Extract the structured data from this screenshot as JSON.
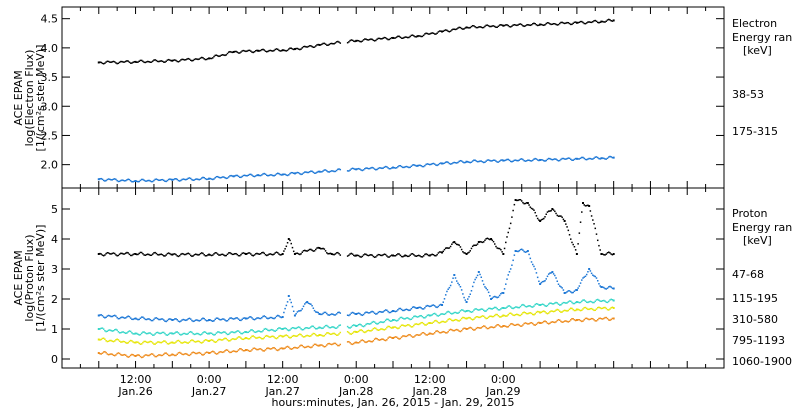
{
  "chart_data": [
    {
      "type": "scatter",
      "panel": "electron",
      "ylabel_lines": [
        "ACE EPAM",
        "log(Electron Flux)",
        "[1/(cm²s ster MeV)]"
      ],
      "ylim": [
        1.6,
        4.7
      ],
      "yticks": [
        2.0,
        2.5,
        3.0,
        3.5,
        4.0,
        4.5
      ],
      "ytick_labels": [
        "2.0",
        "2.5",
        "3.0",
        "3.5",
        "4.0",
        "4.5"
      ],
      "legend_title": [
        "Electron",
        "Energy ran",
        "[keV]"
      ],
      "series": [
        {
          "name": "38-53",
          "color": "#000000",
          "x": [
            0,
            6,
            12,
            18,
            22,
            26,
            30,
            32,
            36,
            42,
            48,
            52,
            56,
            60,
            66,
            72,
            78,
            82,
            84
          ],
          "y": [
            3.75,
            3.76,
            3.78,
            3.82,
            3.93,
            3.95,
            3.96,
            3.98,
            4.05,
            4.12,
            4.17,
            4.2,
            4.28,
            4.35,
            4.38,
            4.4,
            4.43,
            4.45,
            4.47
          ]
        },
        {
          "name": "175-315",
          "color": "#1e78d6",
          "x": [
            0,
            6,
            12,
            18,
            22,
            26,
            30,
            32,
            36,
            42,
            48,
            52,
            56,
            60,
            66,
            72,
            78,
            82,
            84
          ],
          "y": [
            1.75,
            1.72,
            1.74,
            1.76,
            1.8,
            1.82,
            1.83,
            1.85,
            1.88,
            1.92,
            1.95,
            1.98,
            2.02,
            2.05,
            2.07,
            2.08,
            2.1,
            2.11,
            2.12
          ]
        }
      ]
    },
    {
      "type": "scatter",
      "panel": "proton",
      "ylabel_lines": [
        "ACE EPAM",
        "log(Proton Flux)",
        "[1/(cm²s ster MeV)]"
      ],
      "ylim": [
        -0.3,
        5.7
      ],
      "yticks": [
        0,
        1,
        2,
        3,
        4,
        5
      ],
      "ytick_labels": [
        "0",
        "1",
        "2",
        "3",
        "4",
        "5"
      ],
      "legend_title": [
        "Proton",
        "Energy ran",
        "[keV]"
      ],
      "series": [
        {
          "name": "47-68",
          "color": "#000000",
          "x": [
            0,
            6,
            12,
            18,
            24,
            30,
            31,
            32,
            36,
            38,
            42,
            48,
            50,
            54,
            56,
            58,
            60,
            62,
            64,
            66,
            68,
            70,
            72,
            74,
            76,
            78,
            79,
            80,
            82,
            84
          ],
          "y": [
            3.5,
            3.5,
            3.48,
            3.48,
            3.5,
            3.5,
            4.0,
            3.5,
            3.7,
            3.5,
            3.45,
            3.45,
            3.45,
            3.45,
            3.55,
            3.9,
            3.5,
            3.9,
            4.0,
            3.5,
            5.3,
            5.2,
            4.6,
            5.0,
            4.6,
            3.5,
            5.2,
            5.1,
            3.5,
            3.5
          ]
        },
        {
          "name": "115-195",
          "color": "#1e78d6",
          "x": [
            0,
            6,
            12,
            18,
            24,
            30,
            31,
            32,
            34,
            36,
            42,
            48,
            52,
            56,
            58,
            60,
            62,
            64,
            66,
            68,
            70,
            72,
            74,
            76,
            78,
            80,
            82,
            84
          ],
          "y": [
            1.45,
            1.35,
            1.3,
            1.3,
            1.35,
            1.4,
            2.1,
            1.45,
            1.9,
            1.5,
            1.5,
            1.6,
            1.7,
            1.8,
            2.8,
            1.9,
            2.9,
            2.0,
            2.2,
            3.6,
            3.6,
            2.5,
            2.9,
            2.2,
            2.3,
            3.0,
            2.4,
            2.35
          ]
        },
        {
          "name": "310-580",
          "color": "#36d6c8",
          "x": [
            0,
            6,
            12,
            18,
            24,
            30,
            36,
            42,
            48,
            54,
            60,
            66,
            72,
            78,
            84
          ],
          "y": [
            1.0,
            0.85,
            0.85,
            0.85,
            0.9,
            1.0,
            1.05,
            1.1,
            1.3,
            1.45,
            1.6,
            1.7,
            1.8,
            1.9,
            1.95
          ]
        },
        {
          "name": "795-1193",
          "color": "#e6e60a",
          "x": [
            0,
            6,
            12,
            18,
            24,
            30,
            36,
            42,
            48,
            54,
            60,
            66,
            72,
            78,
            84
          ],
          "y": [
            0.65,
            0.55,
            0.55,
            0.6,
            0.7,
            0.75,
            0.8,
            0.9,
            1.05,
            1.2,
            1.35,
            1.45,
            1.55,
            1.65,
            1.7
          ]
        },
        {
          "name": "1060-1900",
          "color": "#ee8c1e",
          "x": [
            0,
            6,
            12,
            18,
            24,
            30,
            36,
            42,
            48,
            54,
            60,
            66,
            72,
            78,
            84
          ],
          "y": [
            0.2,
            0.1,
            0.15,
            0.2,
            0.3,
            0.35,
            0.45,
            0.55,
            0.7,
            0.85,
            1.0,
            1.1,
            1.2,
            1.3,
            1.35
          ]
        }
      ]
    }
  ],
  "x_axis": {
    "xlim": [
      -6,
      102
    ],
    "ticks": [
      {
        "x": 6,
        "time": "12:00",
        "date": "Jan.26"
      },
      {
        "x": 18,
        "time": "0:00",
        "date": "Jan.27"
      },
      {
        "x": 30,
        "time": "12:00",
        "date": "Jan.27"
      },
      {
        "x": 42,
        "time": "0:00",
        "date": "Jan.28"
      },
      {
        "x": 54,
        "time": "12:00",
        "date": "Jan.28"
      },
      {
        "x": 66,
        "time": "0:00",
        "date": "Jan.29"
      }
    ],
    "label": "hours:minutes, Jan. 26, 2015 - Jan. 29, 2015"
  }
}
